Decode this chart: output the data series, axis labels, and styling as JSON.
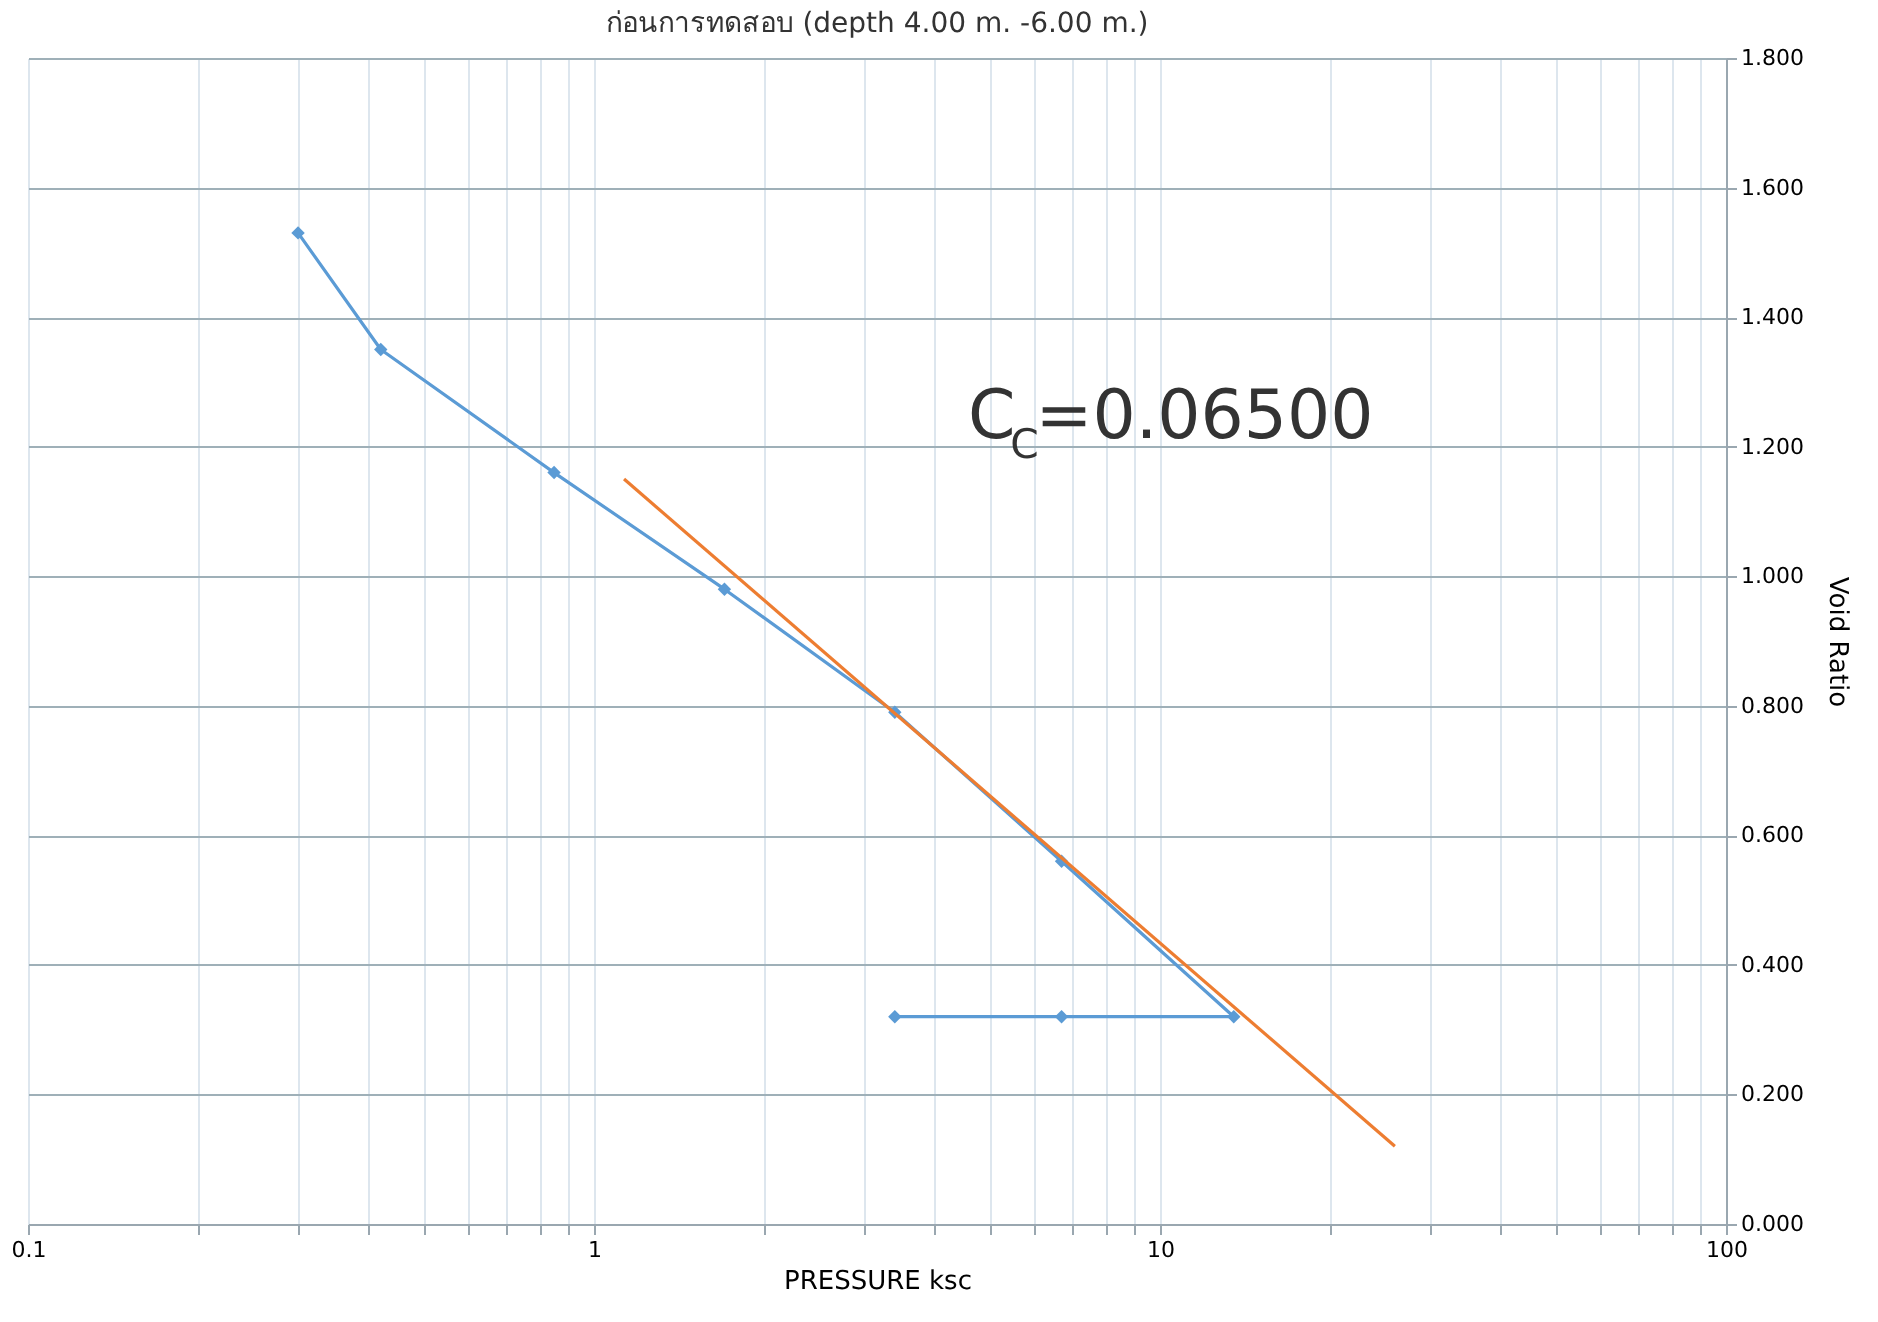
{
  "chart_data": {
    "type": "line",
    "title": "ก่อนการทดสอบ (depth 4.00 m. -6.00 m.)",
    "xlabel": "PRESSURE   ksc",
    "ylabel": "Void Ratio",
    "log": "x",
    "grid": true,
    "xlim": [
      0.1,
      100
    ],
    "xticks": [
      0.1,
      {
        "value": 0.2,
        "label": null
      },
      {
        "value": 0.3,
        "label": null
      },
      {
        "value": 0.4,
        "label": null
      },
      {
        "value": 0.5,
        "label": null
      },
      {
        "value": 0.6,
        "label": null
      },
      {
        "value": 0.7,
        "label": null
      },
      {
        "value": 0.8,
        "label": null
      },
      {
        "value": 0.9,
        "label": null
      },
      1,
      {
        "value": 2,
        "label": null
      },
      {
        "value": 3,
        "label": null
      },
      {
        "value": 4,
        "label": null
      },
      {
        "value": 5,
        "label": null
      },
      {
        "value": 6,
        "label": null
      },
      {
        "value": 7,
        "label": null
      },
      {
        "value": 8,
        "label": null
      },
      {
        "value": 9,
        "label": null
      },
      10,
      {
        "value": 20,
        "label": null
      },
      {
        "value": 30,
        "label": null
      },
      {
        "value": 40,
        "label": null
      },
      {
        "value": 50,
        "label": null
      },
      {
        "value": 60,
        "label": null
      },
      {
        "value": 70,
        "label": null
      },
      {
        "value": 80,
        "label": null
      },
      {
        "value": 90,
        "label": null
      },
      100
    ],
    "ylim": [
      0,
      1.8
    ],
    "yticks": [
      {
        "value": 0,
        "label": "0.000"
      },
      {
        "value": 0.2,
        "label": "0.200"
      },
      {
        "value": 0.4,
        "label": "0.400"
      },
      {
        "value": 0.6,
        "label": "0.600"
      },
      {
        "value": 0.8,
        "label": "0.800"
      },
      {
        "value": 1.0,
        "label": "1.000"
      },
      {
        "value": 1.2,
        "label": "1.200"
      },
      {
        "value": 1.4,
        "label": "1.400"
      },
      {
        "value": 1.6,
        "label": "1.600"
      },
      {
        "value": 1.8,
        "label": "1.800"
      }
    ],
    "series": [
      {
        "color": "#5b9bd5",
        "marker": "diamond",
        "x": [
          0.3,
          0.42,
          0.85,
          1.7,
          3.4,
          6.7,
          13.5,
          6.7,
          3.4
        ],
        "values": [
          1.53,
          1.35,
          1.16,
          0.98,
          0.79,
          0.56,
          0.32,
          0.32,
          0.32
        ]
      },
      {
        "color": "#ed7d31",
        "marker": "none",
        "x": [
          1.13,
          26
        ],
        "values": [
          1.15,
          0.12
        ]
      }
    ],
    "annotations": [
      "C$_{C}$=0.06500"
    ]
  }
}
